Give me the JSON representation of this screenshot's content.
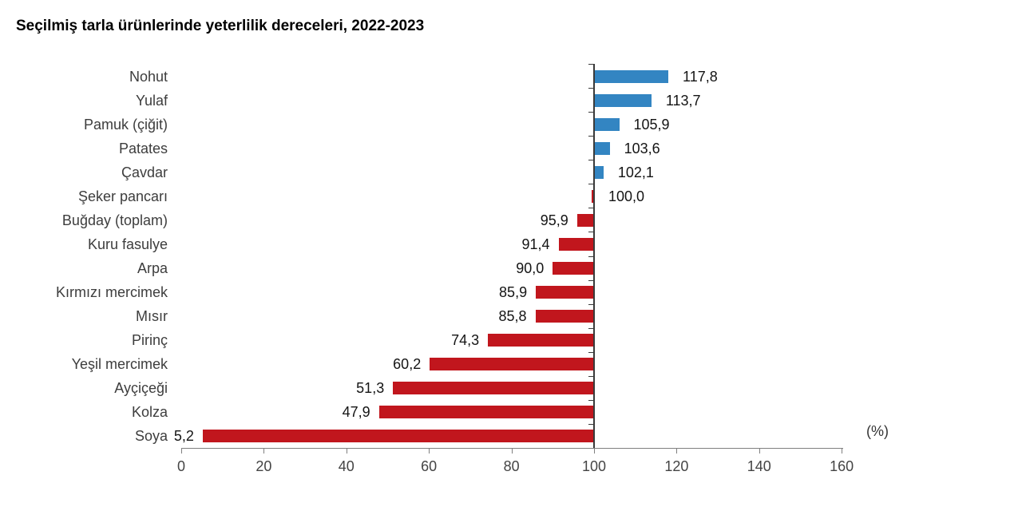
{
  "title": "Seçilmiş tarla ürünlerinde yeterlilik dereceleri, 2022-2023",
  "colors": {
    "above_anchor_bar": "#3385c2",
    "below_anchor_bar": "#c1161d",
    "anchor_line": "#3a3a3a",
    "x_axis": "#7f7f7f",
    "category_label_text": "#3d3d3d",
    "value_label_text": "#141414",
    "tick_label_text": "#444444"
  },
  "chart_data": {
    "type": "bar",
    "orientation": "horizontal",
    "title": "Seçilmiş tarla ürünlerinde yeterlilik dereceleri, 2022-2023",
    "xlabel": "(%)",
    "ylabel": "",
    "xlim": [
      0,
      160
    ],
    "xticks": [
      0,
      20,
      40,
      60,
      80,
      100,
      120,
      140,
      160
    ],
    "grid": false,
    "anchor": 100,
    "legend_position": "none",
    "color_rule": "bars with value above 100 are blue, at or below 100 are red; bars are anchored at the 100 reference line",
    "categories": [
      "Nohut",
      "Yulaf",
      "Pamuk (çiğit)",
      "Patates",
      "Çavdar",
      "Şeker pancarı",
      "Buğday (toplam)",
      "Kuru fasulye",
      "Arpa",
      "Kırmızı mercimek",
      "Mısır",
      "Pirinç",
      "Yeşil mercimek",
      "Ayçiçeği",
      "Kolza",
      "Soya"
    ],
    "values": [
      117.8,
      113.7,
      105.9,
      103.6,
      102.1,
      100.0,
      95.9,
      91.4,
      90.0,
      85.9,
      85.8,
      74.3,
      60.2,
      51.3,
      47.9,
      5.2
    ],
    "value_labels": [
      "117,8",
      "113,7",
      "105,9",
      "103,6",
      "102,1",
      "100,0",
      "95,9",
      "91,4",
      "90,0",
      "85,9",
      "85,8",
      "74,3",
      "60,2",
      "51,3",
      "47,9",
      "5,2"
    ]
  }
}
